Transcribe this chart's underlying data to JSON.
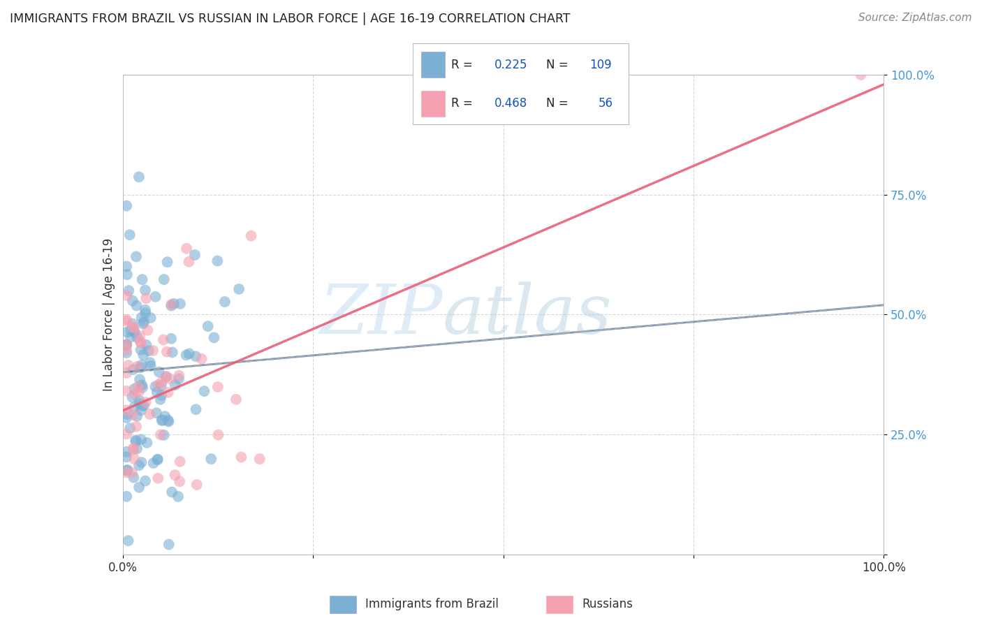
{
  "title": "IMMIGRANTS FROM BRAZIL VS RUSSIAN IN LABOR FORCE | AGE 16-19 CORRELATION CHART",
  "source": "Source: ZipAtlas.com",
  "ylabel": "In Labor Force | Age 16-19",
  "brazil_R": 0.225,
  "brazil_N": 109,
  "russia_R": 0.468,
  "russia_N": 56,
  "brazil_color": "#7BAFD4",
  "russia_color": "#F4A0B0",
  "trend_brazil_color": "#3A6EA8",
  "trend_russia_color": "#E8607A",
  "background_color": "#FFFFFF",
  "grid_color": "#CCCCCC",
  "legend_text_color": "#222222",
  "legend_value_color": "#1155BB",
  "ytick_color": "#4499DD",
  "xtick_color": "#333333"
}
